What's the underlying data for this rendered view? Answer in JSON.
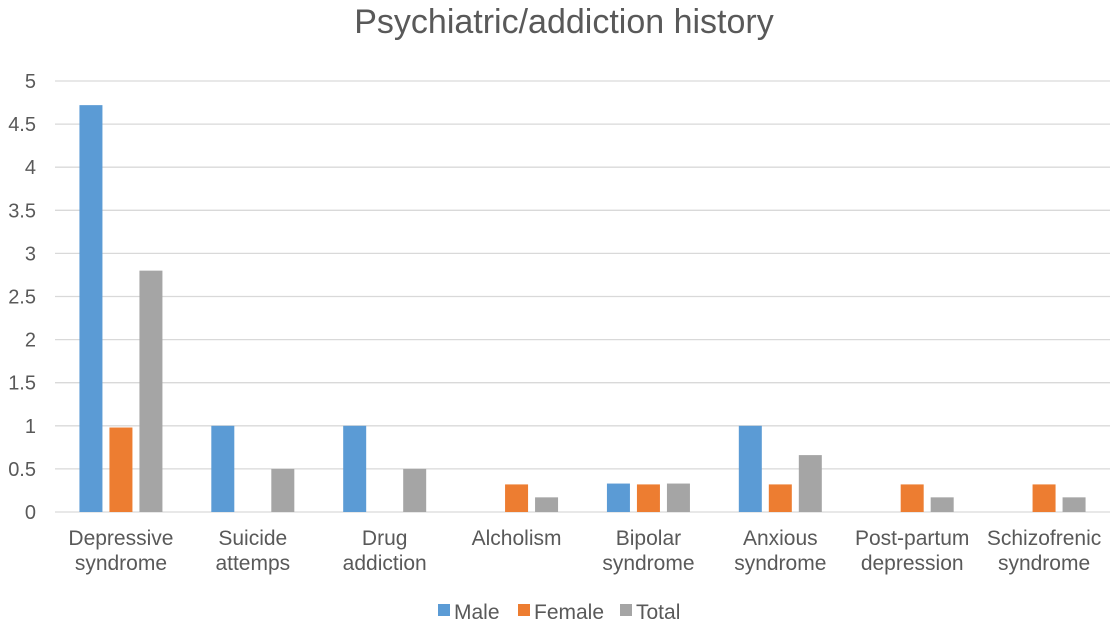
{
  "chart_data": {
    "type": "bar",
    "title": "Psychiatric/addiction history",
    "categories": [
      [
        "Depressive",
        "syndrome"
      ],
      [
        "Suicide",
        "attemps"
      ],
      [
        "Drug",
        "addiction"
      ],
      [
        "Alcholism"
      ],
      [
        "Bipolar",
        "syndrome"
      ],
      [
        "Anxious",
        "syndrome"
      ],
      [
        "Post-partum",
        "depression"
      ],
      [
        "Schizofrenic",
        "syndrome"
      ]
    ],
    "series": [
      {
        "name": "Male",
        "color": "#5b9bd5",
        "values": [
          4.72,
          1.0,
          1.0,
          0,
          0.33,
          1.0,
          0,
          0
        ]
      },
      {
        "name": "Female",
        "color": "#ed7d31",
        "values": [
          0.98,
          0,
          0,
          0.32,
          0.32,
          0.32,
          0.32,
          0.32
        ]
      },
      {
        "name": "Total",
        "color": "#a5a5a5",
        "values": [
          2.8,
          0.5,
          0.5,
          0.17,
          0.33,
          0.66,
          0.17,
          0.17
        ]
      }
    ],
    "ylim": [
      0,
      5
    ],
    "yticks": [
      "0",
      "0.5",
      "1",
      "1.5",
      "2",
      "2.5",
      "3",
      "3.5",
      "4",
      "4.5",
      "5"
    ],
    "grid": true,
    "legend": "bottom"
  }
}
